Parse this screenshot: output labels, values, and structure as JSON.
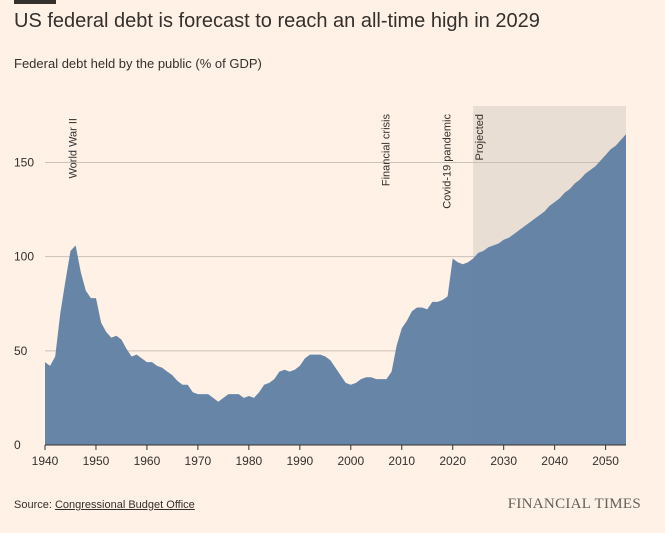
{
  "header": {
    "title": "US federal debt is forecast to reach an all-time high in 2029",
    "subtitle": "Federal debt held by the public (% of GDP)"
  },
  "footer": {
    "source_prefix": "Source: ",
    "source_link": "Congressional Budget Office",
    "brand": "FINANCIAL TIMES"
  },
  "colors": {
    "background": "#fff1e5",
    "area": "#5f7fa3",
    "projection_shade": "#e9ded3",
    "gridline": "#ccc1b7",
    "text": "#33302e"
  },
  "chart_data": {
    "type": "area",
    "title": "US federal debt is forecast to reach an all-time high in 2029",
    "subtitle": "Federal debt held by the public (% of GDP)",
    "xlabel": "",
    "ylabel": "",
    "xlim": [
      1940,
      2054
    ],
    "ylim": [
      0,
      180
    ],
    "x_ticks": [
      1940,
      1950,
      1960,
      1970,
      1980,
      1990,
      2000,
      2010,
      2020,
      2030,
      2040,
      2050
    ],
    "y_ticks": [
      0,
      50,
      100,
      150
    ],
    "grid": true,
    "projected_from": 2024,
    "annotations": [
      {
        "label": "World War II",
        "x": 1946
      },
      {
        "label": "Financial crisis",
        "x": 2008
      },
      {
        "label": "Covid-19 pandemic",
        "x": 2020
      },
      {
        "label": "Projected",
        "x": 2024
      }
    ],
    "series": [
      {
        "x": [
          1940,
          1941,
          1942,
          1943,
          1944,
          1945,
          1946,
          1947,
          1948,
          1949,
          1950,
          1951,
          1952,
          1953,
          1954,
          1955,
          1956,
          1957,
          1958,
          1959,
          1960,
          1961,
          1962,
          1963,
          1964,
          1965,
          1966,
          1967,
          1968,
          1969,
          1970,
          1971,
          1972,
          1973,
          1974,
          1975,
          1976,
          1977,
          1978,
          1979,
          1980,
          1981,
          1982,
          1983,
          1984,
          1985,
          1986,
          1987,
          1988,
          1989,
          1990,
          1991,
          1992,
          1993,
          1994,
          1995,
          1996,
          1997,
          1998,
          1999,
          2000,
          2001,
          2002,
          2003,
          2004,
          2005,
          2006,
          2007,
          2008,
          2009,
          2010,
          2011,
          2012,
          2013,
          2014,
          2015,
          2016,
          2017,
          2018,
          2019,
          2020,
          2021,
          2022,
          2023,
          2024,
          2025,
          2026,
          2027,
          2028,
          2029,
          2030,
          2031,
          2032,
          2033,
          2034,
          2035,
          2036,
          2037,
          2038,
          2039,
          2040,
          2041,
          2042,
          2043,
          2044,
          2045,
          2046,
          2047,
          2048,
          2049,
          2050,
          2051,
          2052,
          2053,
          2054
        ],
        "values": [
          44,
          42,
          47,
          70,
          87,
          103,
          106,
          92,
          82,
          78,
          78,
          65,
          60,
          57,
          58,
          56,
          51,
          47,
          48,
          46,
          44,
          44,
          42,
          41,
          39,
          37,
          34,
          32,
          32,
          28,
          27,
          27,
          27,
          25,
          23,
          25,
          27,
          27,
          27,
          25,
          26,
          25,
          28,
          32,
          33,
          35,
          39,
          40,
          39,
          40,
          42,
          46,
          48,
          48,
          48,
          47,
          45,
          41,
          37,
          33,
          32,
          33,
          35,
          36,
          36,
          35,
          35,
          35,
          39,
          53,
          62,
          66,
          71,
          73,
          73,
          72,
          76,
          76,
          77,
          79,
          99,
          97,
          96,
          97,
          99,
          102,
          103,
          105,
          106,
          107,
          109,
          110,
          112,
          114,
          116,
          118,
          120,
          122,
          124,
          127,
          129,
          131,
          134,
          136,
          139,
          141,
          144,
          146,
          148,
          151,
          154,
          157,
          159,
          162,
          165
        ]
      }
    ]
  }
}
